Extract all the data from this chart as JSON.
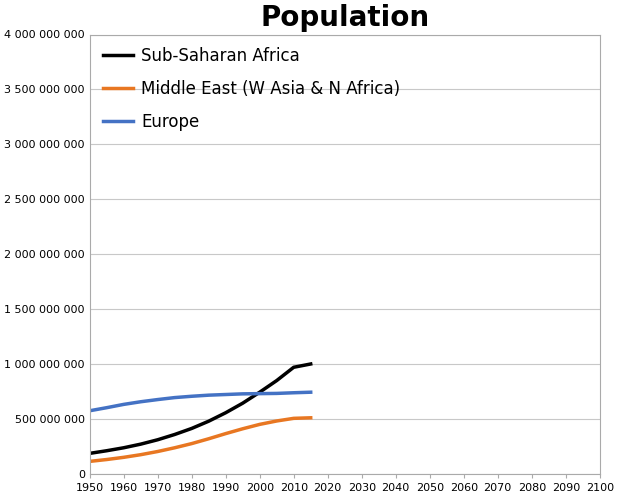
{
  "title": "Population",
  "title_fontsize": 20,
  "title_fontweight": "bold",
  "xlim": [
    1950,
    2100
  ],
  "ylim": [
    0,
    4000000000
  ],
  "xticks": [
    1950,
    1960,
    1970,
    1980,
    1990,
    2000,
    2010,
    2020,
    2030,
    2040,
    2050,
    2060,
    2070,
    2080,
    2090,
    2100
  ],
  "yticks": [
    0,
    500000000,
    1000000000,
    1500000000,
    2000000000,
    2500000000,
    3000000000,
    3500000000,
    4000000000
  ],
  "ytick_labels": [
    "0",
    "500 000 000",
    "1 000 000 000",
    "1 500 000 000",
    "2 000 000 000",
    "2 500 000 000",
    "3 000 000 000",
    "3 500 000 000",
    "4 000 000 000"
  ],
  "background_color": "#ffffff",
  "grid_color": "#c8c8c8",
  "series": [
    {
      "label": "Sub-Saharan Africa",
      "color": "#000000",
      "linewidth": 2.5,
      "x": [
        1950,
        1955,
        1960,
        1965,
        1970,
        1975,
        1980,
        1985,
        1990,
        1995,
        2000,
        2005,
        2010,
        2015
      ],
      "y": [
        186000000,
        210000000,
        237000000,
        270000000,
        310000000,
        358000000,
        413000000,
        479000000,
        556000000,
        643000000,
        743000000,
        849000000,
        970000000,
        1000000000
      ]
    },
    {
      "label": "Middle East (W Asia & N Africa)",
      "color": "#e87722",
      "linewidth": 2.5,
      "x": [
        1950,
        1955,
        1960,
        1965,
        1970,
        1975,
        1980,
        1985,
        1990,
        1995,
        2000,
        2005,
        2010,
        2015
      ],
      "y": [
        113000000,
        130000000,
        150000000,
        174000000,
        203000000,
        237000000,
        275000000,
        319000000,
        366000000,
        410000000,
        450000000,
        481000000,
        505000000,
        510000000
      ]
    },
    {
      "label": "Europe",
      "color": "#4472c4",
      "linewidth": 2.5,
      "x": [
        1950,
        1955,
        1960,
        1965,
        1970,
        1975,
        1980,
        1985,
        1990,
        1995,
        2000,
        2005,
        2010,
        2015
      ],
      "y": [
        574000000,
        602000000,
        632000000,
        656000000,
        676000000,
        694000000,
        706000000,
        716000000,
        722000000,
        728000000,
        730000000,
        732000000,
        738000000,
        743000000
      ]
    }
  ],
  "legend_fontsize": 12,
  "legend_handlelength": 1.8,
  "legend_labelspacing": 0.9
}
